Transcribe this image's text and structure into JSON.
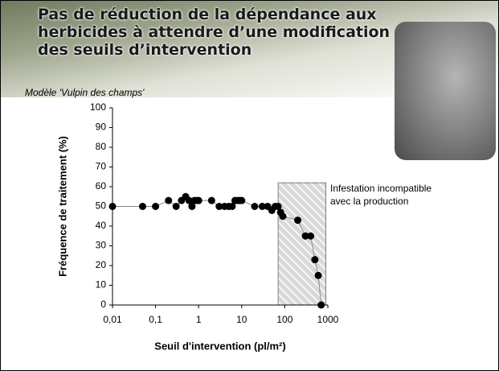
{
  "chart_data": {
    "type": "scatter",
    "title": "Pas de réduction de la dépendance aux herbicides à attendre d’une modification des seuils d’intervention",
    "subtitle": "Modèle  'Vulpin des champs'",
    "x_label": "Seuil d'intervention (pl/m²)",
    "y_label": "Fréquence de traitement (%)",
    "annotation": [
      "Infestation incompatible",
      "avec la production"
    ],
    "x": [
      0.01,
      0.05,
      0.1,
      0.2,
      0.3,
      0.4,
      0.5,
      0.6,
      0.7,
      0.8,
      0.9,
      1,
      2,
      3,
      4,
      5,
      6,
      7,
      8,
      9,
      10,
      20,
      30,
      40,
      50,
      60,
      70,
      80,
      90,
      200,
      300,
      400,
      500,
      600,
      700
    ],
    "values": [
      50,
      50,
      50,
      53,
      50,
      53,
      55,
      53,
      50,
      53,
      53,
      53,
      53,
      50,
      50,
      50,
      50,
      53,
      53,
      53,
      53,
      50,
      50,
      50,
      48,
      50,
      50,
      47,
      45,
      43,
      35,
      35,
      23,
      15,
      0
    ],
    "color": "#000000",
    "xlog": true,
    "xlim": [
      0.01,
      1000
    ],
    "xticks": [
      {
        "value": 0.01,
        "label": "0,01"
      },
      {
        "value": 0.1,
        "label": "0,1"
      },
      1,
      10,
      100,
      1000
    ],
    "ylim": [
      0,
      100
    ],
    "yticks": [
      0,
      10,
      20,
      30,
      40,
      50,
      60,
      70,
      80,
      90,
      100
    ],
    "highlight": {
      "x": [
        70,
        900
      ],
      "y": [
        0,
        62
      ]
    }
  }
}
